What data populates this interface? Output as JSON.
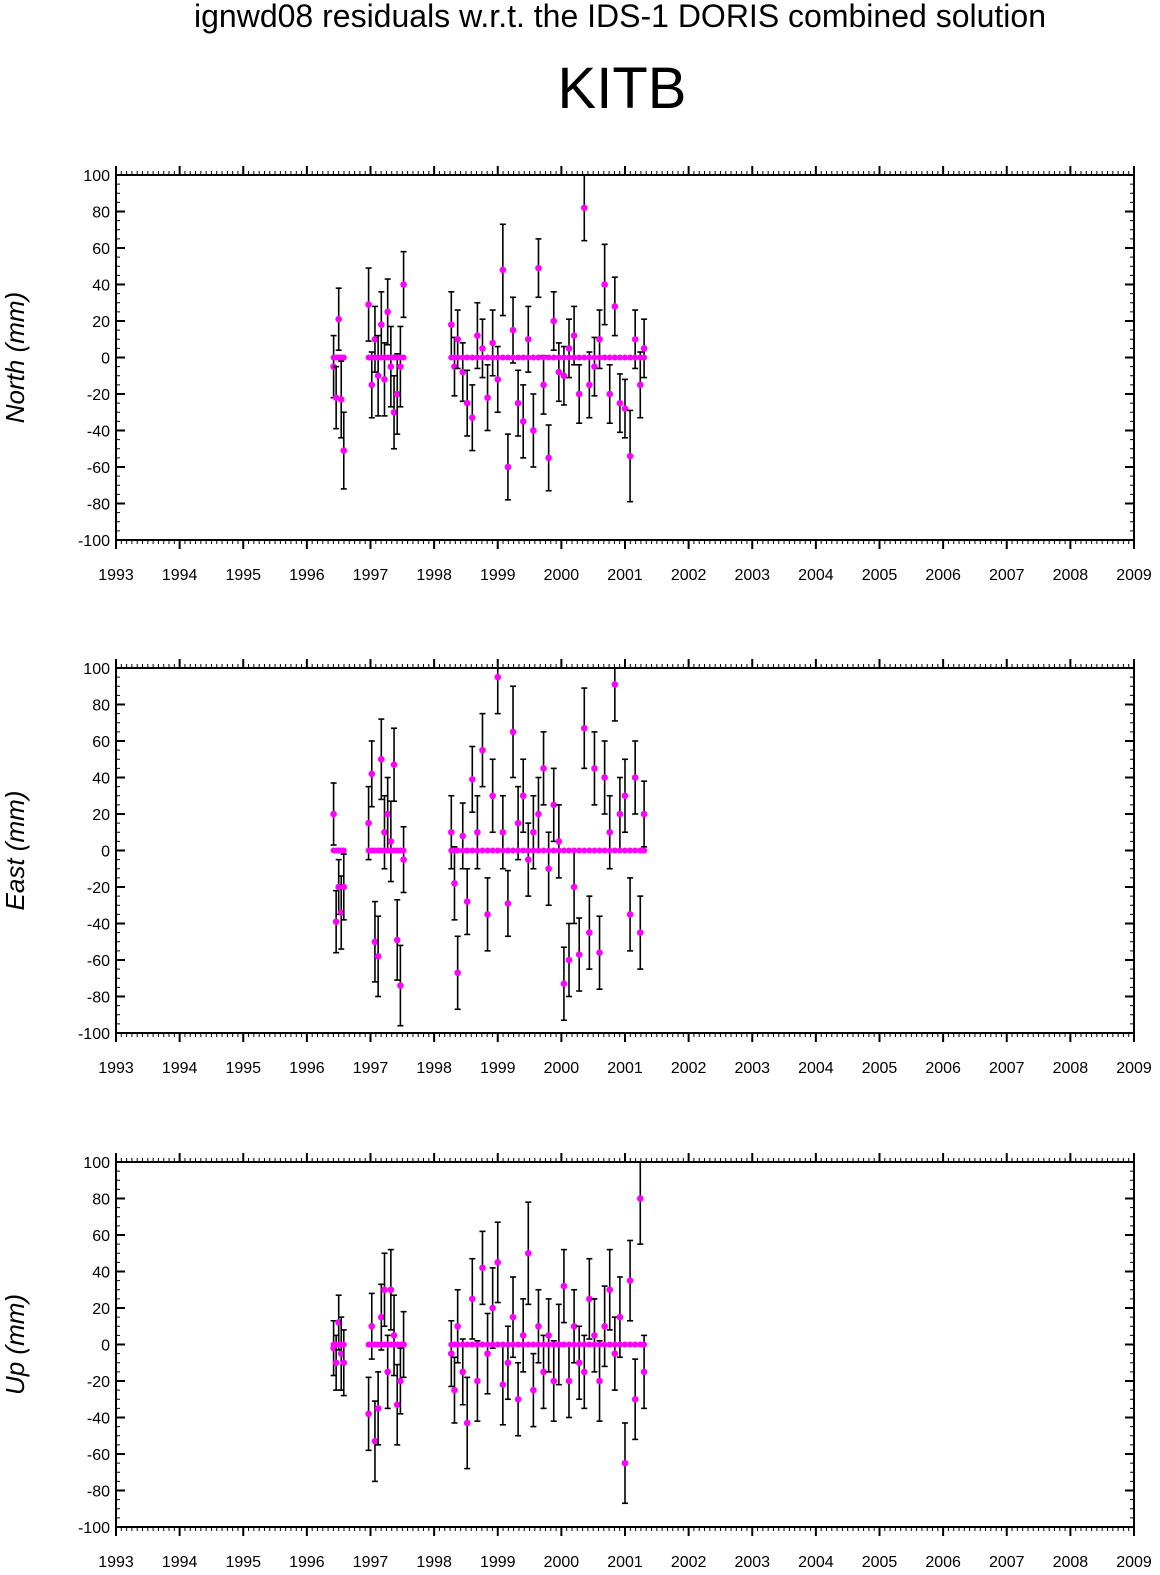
{
  "figure": {
    "title": "ignwd08 residuals w.r.t. the IDS-1 DORIS combined solution",
    "station": "KITB"
  },
  "colors": {
    "point": "#ff00ff",
    "error_bar": "#000000",
    "axis": "#000000"
  },
  "chart_data": [
    {
      "type": "scatter",
      "ylabel": "North (mm)",
      "xlim": [
        1993,
        2009
      ],
      "ylim": [
        -100,
        100
      ],
      "x_ticks": [
        "1993",
        "1994",
        "1995",
        "1996",
        "1997",
        "1998",
        "1999",
        "2000",
        "2001",
        "2002",
        "2003",
        "2004",
        "2005",
        "2006",
        "2007",
        "2008",
        "2009"
      ],
      "y_ticks": [
        "100",
        "80",
        "60",
        "40",
        "20",
        "0",
        "-20",
        "-40",
        "-60",
        "-80",
        "-100"
      ],
      "grid": false,
      "series": [
        {
          "x": [
            1996.42,
            1996.46,
            1996.5,
            1996.54,
            1996.58,
            1996.97,
            1997.02,
            1997.07,
            1997.12,
            1997.17,
            1997.22,
            1997.27,
            1997.32,
            1997.37,
            1997.42,
            1997.47,
            1997.52,
            1998.27,
            1998.32,
            1998.37,
            1998.45,
            1998.52,
            1998.6,
            1998.68,
            1998.76,
            1998.84,
            1998.92,
            1999.0,
            1999.08,
            1999.16,
            1999.24,
            1999.32,
            1999.4,
            1999.48,
            1999.56,
            1999.64,
            1999.72,
            1999.8,
            1999.88,
            1999.96,
            2000.04,
            2000.12,
            2000.2,
            2000.28,
            2000.36,
            2000.44,
            2000.52,
            2000.6,
            2000.68,
            2000.76,
            2000.84,
            2000.92,
            2001.0,
            2001.08,
            2001.16,
            2001.24,
            2001.3
          ],
          "y": [
            -5,
            -22,
            21,
            -23,
            -51,
            29,
            -15,
            10,
            -10,
            18,
            -12,
            25,
            -5,
            -30,
            -20,
            -5,
            40,
            18,
            -5,
            10,
            -8,
            -25,
            -33,
            12,
            5,
            -22,
            8,
            -12,
            48,
            -60,
            15,
            -25,
            -35,
            10,
            -40,
            49,
            -15,
            -55,
            20,
            -8,
            -10,
            5,
            12,
            -20,
            82,
            -15,
            -5,
            10,
            40,
            -20,
            28,
            -25,
            -28,
            -54,
            10,
            -15,
            5
          ],
          "err": [
            17,
            17,
            17,
            21,
            21,
            20,
            18,
            18,
            22,
            18,
            20,
            18,
            22,
            20,
            22,
            22,
            18,
            18,
            16,
            16,
            16,
            18,
            18,
            18,
            16,
            18,
            18,
            18,
            25,
            18,
            18,
            18,
            20,
            18,
            20,
            16,
            16,
            18,
            16,
            16,
            16,
            16,
            16,
            16,
            18,
            18,
            16,
            16,
            22,
            16,
            16,
            16,
            16,
            25,
            16,
            18,
            16
          ]
        }
      ]
    },
    {
      "type": "scatter",
      "ylabel": "East (mm)",
      "xlim": [
        1993,
        2009
      ],
      "ylim": [
        -100,
        100
      ],
      "x_ticks": [
        "1993",
        "1994",
        "1995",
        "1996",
        "1997",
        "1998",
        "1999",
        "2000",
        "2001",
        "2002",
        "2003",
        "2004",
        "2005",
        "2006",
        "2007",
        "2008",
        "2009"
      ],
      "y_ticks": [
        "100",
        "80",
        "60",
        "40",
        "20",
        "0",
        "-20",
        "-40",
        "-60",
        "-80",
        "-100"
      ],
      "grid": false,
      "series": [
        {
          "x": [
            1996.42,
            1996.46,
            1996.5,
            1996.54,
            1996.58,
            1996.97,
            1997.02,
            1997.07,
            1997.12,
            1997.17,
            1997.22,
            1997.27,
            1997.32,
            1997.37,
            1997.42,
            1997.47,
            1997.52,
            1998.27,
            1998.32,
            1998.37,
            1998.45,
            1998.52,
            1998.6,
            1998.68,
            1998.76,
            1998.84,
            1998.92,
            1999.0,
            1999.08,
            1999.16,
            1999.24,
            1999.32,
            1999.4,
            1999.48,
            1999.56,
            1999.64,
            1999.72,
            1999.8,
            1999.88,
            1999.96,
            2000.04,
            2000.12,
            2000.2,
            2000.28,
            2000.36,
            2000.44,
            2000.52,
            2000.6,
            2000.68,
            2000.76,
            2000.84,
            2000.92,
            2001.0,
            2001.08,
            2001.16,
            2001.24,
            2001.3
          ],
          "y": [
            20,
            -39,
            -20,
            -34,
            -20,
            15,
            42,
            -50,
            -58,
            50,
            10,
            20,
            5,
            47,
            -49,
            -74,
            -5,
            10,
            -18,
            -67,
            8,
            -28,
            39,
            10,
            55,
            -35,
            30,
            95,
            10,
            -29,
            65,
            15,
            30,
            -5,
            10,
            20,
            45,
            -10,
            25,
            5,
            -73,
            -60,
            -20,
            -57,
            67,
            -45,
            45,
            -56,
            40,
            10,
            91,
            20,
            30,
            -35,
            40,
            -45,
            20
          ],
          "err": [
            17,
            17,
            15,
            20,
            18,
            20,
            18,
            22,
            22,
            22,
            20,
            20,
            22,
            20,
            22,
            22,
            18,
            20,
            20,
            20,
            18,
            18,
            18,
            20,
            20,
            20,
            20,
            20,
            20,
            18,
            25,
            20,
            20,
            20,
            20,
            20,
            20,
            20,
            20,
            20,
            20,
            20,
            20,
            20,
            22,
            20,
            20,
            20,
            20,
            20,
            20,
            20,
            20,
            20,
            20,
            20,
            18
          ]
        }
      ]
    },
    {
      "type": "scatter",
      "ylabel": "Up (mm)",
      "xlim": [
        1993,
        2009
      ],
      "ylim": [
        -100,
        100
      ],
      "x_ticks": [
        "1993",
        "1994",
        "1995",
        "1996",
        "1997",
        "1998",
        "1999",
        "2000",
        "2001",
        "2002",
        "2003",
        "2004",
        "2005",
        "2006",
        "2007",
        "2008",
        "2009"
      ],
      "y_ticks": [
        "100",
        "80",
        "60",
        "40",
        "20",
        "0",
        "-20",
        "-40",
        "-60",
        "-80",
        "-100"
      ],
      "grid": false,
      "series": [
        {
          "x": [
            1996.42,
            1996.46,
            1996.5,
            1996.54,
            1996.58,
            1996.97,
            1997.02,
            1997.07,
            1997.12,
            1997.17,
            1997.22,
            1997.27,
            1997.32,
            1997.37,
            1997.42,
            1997.47,
            1997.52,
            1998.27,
            1998.32,
            1998.37,
            1998.45,
            1998.52,
            1998.6,
            1998.68,
            1998.76,
            1998.84,
            1998.92,
            1999.0,
            1999.08,
            1999.16,
            1999.24,
            1999.32,
            1999.4,
            1999.48,
            1999.56,
            1999.64,
            1999.72,
            1999.8,
            1999.88,
            1999.96,
            2000.04,
            2000.12,
            2000.2,
            2000.28,
            2000.36,
            2000.44,
            2000.52,
            2000.6,
            2000.68,
            2000.76,
            2000.84,
            2000.92,
            2001.0,
            2001.08,
            2001.16,
            2001.24,
            2001.3
          ],
          "y": [
            -2,
            -10,
            12,
            -5,
            -10,
            -38,
            10,
            -53,
            -35,
            15,
            30,
            -15,
            30,
            5,
            -33,
            -20,
            0,
            -5,
            -25,
            10,
            -15,
            -43,
            25,
            -20,
            42,
            -5,
            20,
            45,
            -22,
            -10,
            15,
            -30,
            5,
            50,
            -25,
            10,
            -15,
            5,
            -20,
            0,
            32,
            -20,
            10,
            -10,
            -15,
            25,
            5,
            -20,
            10,
            30,
            -5,
            15,
            -65,
            35,
            -30,
            80,
            -15
          ],
          "err": [
            15,
            15,
            15,
            20,
            18,
            20,
            18,
            22,
            20,
            18,
            20,
            20,
            22,
            22,
            22,
            18,
            18,
            18,
            18,
            20,
            18,
            25,
            22,
            22,
            20,
            22,
            22,
            22,
            22,
            20,
            22,
            20,
            20,
            28,
            20,
            20,
            20,
            20,
            22,
            22,
            20,
            20,
            20,
            20,
            20,
            22,
            20,
            22,
            22,
            22,
            20,
            22,
            22,
            22,
            22,
            25,
            20
          ]
        }
      ]
    }
  ]
}
